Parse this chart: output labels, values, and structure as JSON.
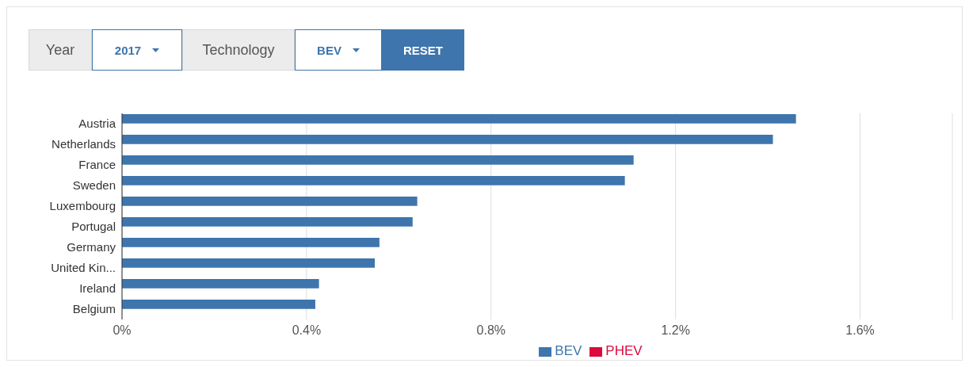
{
  "chart_data": {
    "type": "bar",
    "orientation": "horizontal",
    "categories": [
      "Austria",
      "Netherlands",
      "France",
      "Sweden",
      "Luxembourg",
      "Portugal",
      "Germany",
      "United Kin...",
      "Ireland",
      "Belgium"
    ],
    "series": [
      {
        "name": "BEV",
        "color": "#3e75ad",
        "values": [
          1.461,
          1.411,
          1.109,
          1.09,
          0.64,
          0.63,
          0.558,
          0.548,
          0.427,
          0.419
        ]
      },
      {
        "name": "PHEV",
        "color": "#dc0a3c",
        "values": [
          null,
          null,
          null,
          null,
          null,
          null,
          null,
          null,
          null,
          null
        ]
      }
    ],
    "xlim": [
      0,
      1.8
    ],
    "xticks": [
      {
        "value": 0,
        "label": "0%"
      },
      {
        "value": 0.4,
        "label": "0.4%"
      },
      {
        "value": 0.8,
        "label": "0.8%"
      },
      {
        "value": 1.2,
        "label": "1.2%"
      },
      {
        "value": 1.6,
        "label": "1.6%"
      }
    ],
    "grid": "x",
    "legend": "bottom",
    "annotations": [
      "Year",
      "2017",
      "Technology",
      "BEV",
      "RESET"
    ]
  }
}
